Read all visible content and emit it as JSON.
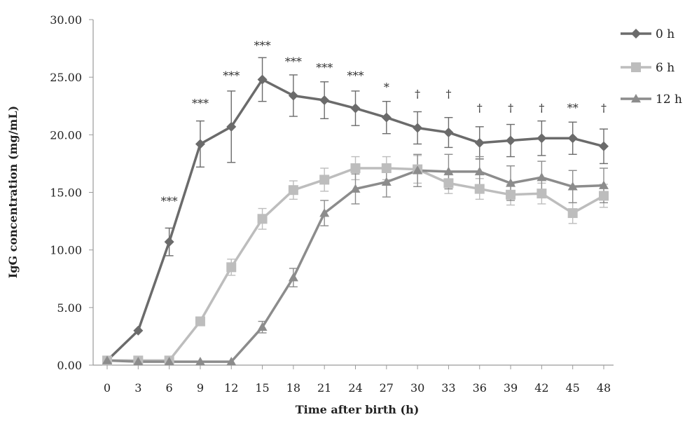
{
  "chart_data": {
    "type": "line",
    "title": "",
    "xlabel": "Time after birth (h)",
    "ylabel": "IgG concentration (mg/mL)",
    "xlim": [
      0,
      48
    ],
    "ylim": [
      0,
      30
    ],
    "x": [
      0,
      3,
      6,
      9,
      12,
      15,
      18,
      21,
      24,
      27,
      30,
      33,
      36,
      39,
      42,
      45,
      48
    ],
    "x_tick_labels": [
      "0",
      "3",
      "6",
      "9",
      "12",
      "15",
      "18",
      "21",
      "24",
      "27",
      "30",
      "33",
      "36",
      "39",
      "42",
      "45",
      "48"
    ],
    "y_tick_labels": [
      "0.00",
      "5.00",
      "10.00",
      "15.00",
      "20.00",
      "25.00",
      "30.00"
    ],
    "y_ticks": [
      0,
      5,
      10,
      15,
      20,
      25,
      30
    ],
    "grid": false,
    "legend_position": "top-right",
    "series": [
      {
        "name": "0 h",
        "color": "#6b6b6b",
        "marker": "diamond",
        "x": [
          0,
          3,
          6,
          9,
          12,
          15,
          18,
          21,
          24,
          27,
          30,
          33,
          36,
          39,
          42,
          45,
          48
        ],
        "values": [
          0.4,
          3.0,
          10.7,
          19.2,
          20.7,
          24.8,
          23.4,
          23.0,
          22.3,
          21.5,
          20.6,
          20.2,
          19.3,
          19.5,
          19.7,
          19.7,
          19.0
        ],
        "errors": [
          0.0,
          0.0,
          1.2,
          2.0,
          3.1,
          1.9,
          1.8,
          1.6,
          1.5,
          1.4,
          1.4,
          1.3,
          1.4,
          1.4,
          1.5,
          1.4,
          1.5
        ]
      },
      {
        "name": "6 h",
        "color": "#bdbdbd",
        "marker": "square",
        "x": [
          0,
          3,
          6,
          9,
          12,
          15,
          18,
          21,
          24,
          27,
          30,
          33,
          36,
          39,
          42,
          45,
          48
        ],
        "values": [
          0.4,
          0.4,
          0.4,
          3.8,
          8.5,
          12.7,
          15.2,
          16.1,
          17.1,
          17.1,
          17.0,
          15.8,
          15.3,
          14.8,
          14.9,
          13.2,
          14.7
        ],
        "errors": [
          0.0,
          0.0,
          0.0,
          0.0,
          0.7,
          0.9,
          0.8,
          1.0,
          1.0,
          1.0,
          1.2,
          0.9,
          0.9,
          0.9,
          0.9,
          0.9,
          1.0
        ]
      },
      {
        "name": "12 h",
        "color": "#8c8c8c",
        "marker": "triangle",
        "x": [
          0,
          3,
          6,
          9,
          12,
          15,
          18,
          21,
          24,
          27,
          30,
          33,
          36,
          39,
          42,
          45,
          48
        ],
        "values": [
          0.4,
          0.3,
          0.3,
          0.3,
          0.3,
          3.3,
          7.6,
          13.2,
          15.3,
          15.9,
          16.9,
          16.8,
          16.8,
          15.8,
          16.3,
          15.5,
          15.6
        ],
        "errors": [
          0.0,
          0.0,
          0.0,
          0.0,
          0.0,
          0.5,
          0.8,
          1.1,
          1.3,
          1.3,
          1.4,
          1.5,
          1.3,
          1.5,
          1.4,
          1.4,
          1.5
        ]
      }
    ],
    "annotations": [
      {
        "x": 6,
        "text": "***",
        "y": 13.9
      },
      {
        "x": 9,
        "text": "***",
        "y": 22.4
      },
      {
        "x": 12,
        "text": "***",
        "y": 24.8
      },
      {
        "x": 15,
        "text": "***",
        "y": 27.4
      },
      {
        "x": 18,
        "text": "***",
        "y": 26.0
      },
      {
        "x": 21,
        "text": "***",
        "y": 25.5
      },
      {
        "x": 24,
        "text": "***",
        "y": 24.8
      },
      {
        "x": 27,
        "text": "*",
        "y": 23.8
      },
      {
        "x": 30,
        "text": "†",
        "y": 23.2
      },
      {
        "x": 33,
        "text": "†",
        "y": 23.2
      },
      {
        "x": 36,
        "text": "†",
        "y": 22.0
      },
      {
        "x": 39,
        "text": "†",
        "y": 22.0
      },
      {
        "x": 42,
        "text": "†",
        "y": 22.0
      },
      {
        "x": 45,
        "text": "**",
        "y": 22.0
      },
      {
        "x": 48,
        "text": "†",
        "y": 22.0
      }
    ]
  }
}
